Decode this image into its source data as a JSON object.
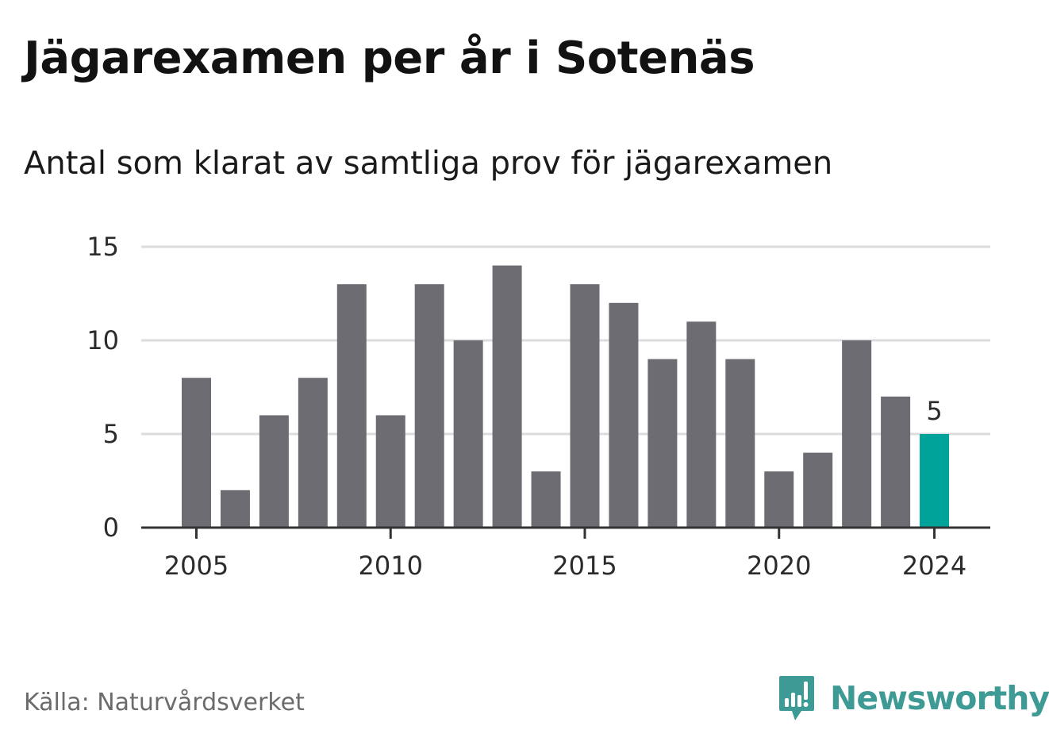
{
  "title": "Jägarexamen per år i Sotenäs",
  "subtitle": "Antal som klarat av samtliga prov för jägarexamen",
  "source": "Källa: Naturvårdsverket",
  "brand": {
    "name": "Newsworthy",
    "icon": "newsworthy-logo-icon",
    "color": "#3e9a94"
  },
  "colors": {
    "bar": "#6d6c72",
    "highlight": "#00a39a",
    "grid": "#dcdcdc",
    "axis": "#333333"
  },
  "chart_data": {
    "type": "bar",
    "title": "Jägarexamen per år i Sotenäs",
    "subtitle": "Antal som klarat av samtliga prov för jägarexamen",
    "x": [
      2005,
      2006,
      2007,
      2008,
      2009,
      2010,
      2011,
      2012,
      2013,
      2014,
      2015,
      2016,
      2017,
      2018,
      2019,
      2020,
      2021,
      2022,
      2023,
      2024
    ],
    "values": [
      8,
      2,
      6,
      8,
      13,
      6,
      13,
      10,
      14,
      3,
      13,
      12,
      9,
      11,
      9,
      3,
      4,
      10,
      7,
      5
    ],
    "ylim": [
      0,
      15
    ],
    "yticks": [
      0,
      5,
      10,
      15
    ],
    "xticks": [
      2005,
      2010,
      2015,
      2020,
      2024
    ],
    "highlight": {
      "x": 2024,
      "label": "5"
    },
    "grid": "horizontal",
    "legend": "none"
  }
}
